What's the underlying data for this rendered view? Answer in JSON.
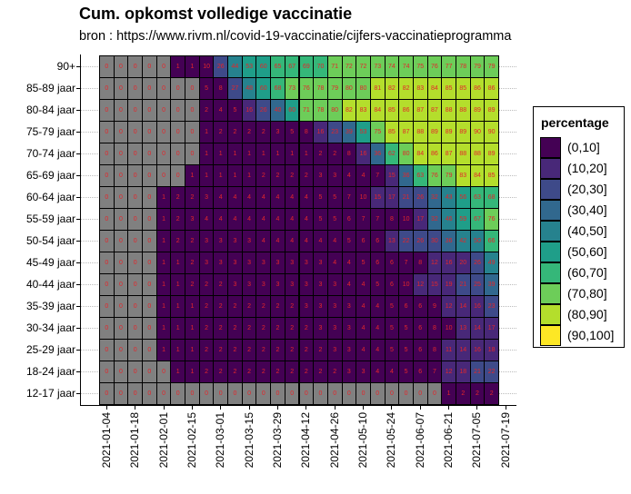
{
  "chart_data": {
    "type": "heatmap",
    "title": "Cum. opkomst volledige vaccinatie",
    "subtitle": "bron : https://www.rivm.nl/covid-19-vaccinatie/cijfers-vaccinatieprogramma",
    "xlabel": "",
    "ylabel": "",
    "x_tick_labels": [
      "2021-01-04",
      "2021-01-18",
      "2021-02-01",
      "2021-02-15",
      "2021-03-01",
      "2021-03-15",
      "2021-03-29",
      "2021-04-12",
      "2021-04-26",
      "2021-05-10",
      "2021-05-24",
      "2021-06-07",
      "2021-06-21",
      "2021-07-05",
      "2021-07-19"
    ],
    "n_columns": 28,
    "column_interval": "weekly",
    "rows": [
      "90+",
      "85-89 jaar",
      "80-84 jaar",
      "75-79 jaar",
      "70-74 jaar",
      "65-69 jaar",
      "60-64 jaar",
      "55-59 jaar",
      "50-54 jaar",
      "45-49 jaar",
      "40-44 jaar",
      "35-39 jaar",
      "30-34 jaar",
      "25-29 jaar",
      "18-24 jaar",
      "12-17 jaar"
    ],
    "values": [
      [
        0,
        0,
        0,
        0,
        0,
        1,
        1,
        10,
        26,
        44,
        53,
        60,
        65,
        67,
        69,
        70,
        71,
        72,
        72,
        73,
        74,
        74,
        75,
        76,
        77,
        78,
        79,
        79
      ],
      [
        0,
        0,
        0,
        0,
        0,
        0,
        0,
        5,
        8,
        27,
        48,
        60,
        68,
        73,
        76,
        78,
        79,
        80,
        80,
        81,
        82,
        82,
        83,
        84,
        85,
        85,
        86,
        86
      ],
      [
        0,
        0,
        0,
        0,
        0,
        0,
        0,
        2,
        4,
        5,
        16,
        26,
        40,
        60,
        71,
        78,
        80,
        82,
        83,
        84,
        85,
        86,
        87,
        87,
        88,
        88,
        89,
        89
      ],
      [
        0,
        0,
        0,
        0,
        0,
        0,
        0,
        1,
        2,
        2,
        2,
        2,
        3,
        5,
        8,
        16,
        23,
        39,
        53,
        75,
        85,
        87,
        88,
        89,
        89,
        89,
        90,
        90
      ],
      [
        0,
        0,
        0,
        0,
        0,
        0,
        0,
        1,
        1,
        1,
        1,
        1,
        1,
        1,
        1,
        2,
        2,
        8,
        16,
        36,
        62,
        80,
        84,
        86,
        87,
        88,
        88,
        89
      ],
      [
        0,
        0,
        0,
        0,
        0,
        0,
        1,
        1,
        1,
        1,
        1,
        2,
        2,
        2,
        2,
        3,
        3,
        4,
        4,
        7,
        15,
        36,
        63,
        76,
        79,
        83,
        84,
        85
      ],
      [
        0,
        0,
        0,
        0,
        1,
        2,
        2,
        3,
        4,
        4,
        4,
        4,
        4,
        4,
        4,
        5,
        5,
        7,
        10,
        15,
        17,
        21,
        26,
        32,
        43,
        56,
        63,
        68
      ],
      [
        0,
        0,
        0,
        0,
        1,
        2,
        3,
        4,
        4,
        4,
        4,
        4,
        4,
        4,
        4,
        5,
        5,
        6,
        7,
        7,
        8,
        10,
        17,
        32,
        46,
        59,
        67,
        76
      ],
      [
        0,
        0,
        0,
        0,
        1,
        2,
        2,
        3,
        3,
        3,
        3,
        4,
        4,
        4,
        4,
        4,
        4,
        5,
        6,
        6,
        13,
        22,
        26,
        30,
        36,
        42,
        50,
        66
      ],
      [
        0,
        0,
        0,
        0,
        1,
        1,
        2,
        3,
        3,
        3,
        3,
        3,
        3,
        3,
        3,
        3,
        4,
        4,
        5,
        6,
        6,
        7,
        8,
        12,
        16,
        20,
        26,
        49
      ],
      [
        0,
        0,
        0,
        0,
        1,
        1,
        2,
        2,
        2,
        3,
        3,
        3,
        3,
        3,
        3,
        3,
        3,
        4,
        4,
        5,
        6,
        10,
        12,
        15,
        19,
        21,
        25,
        39
      ],
      [
        0,
        0,
        0,
        0,
        1,
        1,
        1,
        2,
        2,
        2,
        2,
        2,
        2,
        2,
        3,
        3,
        3,
        3,
        4,
        4,
        5,
        6,
        6,
        9,
        12,
        14,
        16,
        23
      ],
      [
        0,
        0,
        0,
        0,
        1,
        1,
        1,
        2,
        2,
        2,
        2,
        2,
        2,
        2,
        2,
        3,
        3,
        3,
        4,
        4,
        5,
        5,
        6,
        8,
        10,
        13,
        14,
        17
      ],
      [
        0,
        0,
        0,
        0,
        1,
        1,
        1,
        2,
        2,
        2,
        2,
        2,
        2,
        2,
        2,
        2,
        3,
        3,
        4,
        4,
        5,
        5,
        6,
        8,
        11,
        14,
        16,
        18
      ],
      [
        0,
        0,
        0,
        0,
        0,
        1,
        1,
        2,
        2,
        2,
        2,
        2,
        2,
        2,
        2,
        2,
        2,
        3,
        3,
        4,
        4,
        5,
        6,
        7,
        12,
        18,
        21,
        22
      ],
      [
        0,
        0,
        0,
        0,
        0,
        0,
        0,
        0,
        0,
        0,
        0,
        0,
        0,
        0,
        0,
        0,
        0,
        0,
        0,
        0,
        0,
        0,
        0,
        0,
        1,
        2,
        2,
        2
      ]
    ],
    "zero_color": "#808080",
    "legend": {
      "title": "percentage",
      "position": "right",
      "items": [
        {
          "label": "(0,10]",
          "color": "#440154"
        },
        {
          "label": "(10,20]",
          "color": "#482878"
        },
        {
          "label": "(20,30]",
          "color": "#3E4A89"
        },
        {
          "label": "(30,40]",
          "color": "#31688E"
        },
        {
          "label": "(40,50]",
          "color": "#26828E"
        },
        {
          "label": "(50,60]",
          "color": "#1F9E89"
        },
        {
          "label": "(60,70]",
          "color": "#35B779"
        },
        {
          "label": "(70,80]",
          "color": "#6DCD59"
        },
        {
          "label": "(80,90]",
          "color": "#B4DE2C"
        },
        {
          "label": "(90,100]",
          "color": "#FDE725"
        }
      ]
    },
    "cell_text_color": "#E3262B",
    "grid": "dotted row lines"
  }
}
